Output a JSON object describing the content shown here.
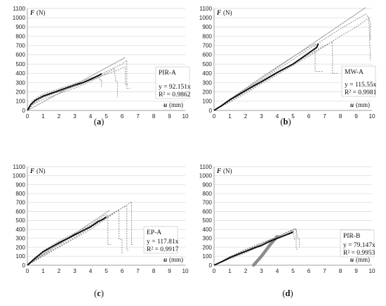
{
  "chart_data": [
    {
      "type": "line",
      "panel": "(a)",
      "label_letter": "a",
      "specimen": "PIR-A",
      "equation": "y = 92.151x",
      "r2": "R² = 0.9862",
      "xlabel_symbol": "u",
      "xlabel_unit": "(mm)",
      "ylabel_symbol": "F",
      "ylabel_unit": "(N)",
      "xlim": [
        0,
        10
      ],
      "ylim": [
        0,
        1100
      ],
      "xticks": [
        0,
        1,
        2,
        3,
        4,
        5,
        6,
        7,
        8,
        9,
        10
      ],
      "yticks": [
        0,
        100,
        200,
        300,
        400,
        500,
        600,
        700,
        800,
        900,
        1000,
        1100
      ],
      "grid": true,
      "slope": 92.151,
      "fit_x_end": 6.2,
      "mean_curve": [
        [
          0,
          0
        ],
        [
          0.2,
          60
        ],
        [
          0.5,
          110
        ],
        [
          1,
          155
        ],
        [
          1.5,
          185
        ],
        [
          2,
          215
        ],
        [
          2.5,
          245
        ],
        [
          3,
          275
        ],
        [
          3.5,
          300
        ],
        [
          4,
          335
        ],
        [
          4.3,
          360
        ],
        [
          4.6,
          385
        ],
        [
          4.7,
          395
        ]
      ],
      "specimen_curves": [
        [
          [
            0,
            0
          ],
          [
            0.3,
            100
          ],
          [
            0.7,
            150
          ],
          [
            1.2,
            190
          ],
          [
            2,
            235
          ],
          [
            3,
            290
          ],
          [
            4,
            350
          ],
          [
            4.5,
            375
          ],
          [
            4.6,
            330
          ],
          [
            4.7,
            330
          ],
          [
            4.7,
            250
          ]
        ],
        [
          [
            0,
            0
          ],
          [
            0.3,
            80
          ],
          [
            0.8,
            135
          ],
          [
            1.5,
            175
          ],
          [
            2.5,
            230
          ],
          [
            3.5,
            290
          ],
          [
            4.5,
            360
          ],
          [
            5.5,
            420
          ],
          [
            6.2,
            470
          ],
          [
            6.2,
            280
          ],
          [
            6.4,
            280
          ]
        ],
        [
          [
            0,
            0
          ],
          [
            0.4,
            70
          ],
          [
            1,
            120
          ],
          [
            2,
            180
          ],
          [
            3,
            240
          ],
          [
            4,
            310
          ],
          [
            5,
            400
          ],
          [
            5.5,
            450
          ],
          [
            5.6,
            310
          ],
          [
            5.7,
            310
          ],
          [
            5.7,
            150
          ]
        ],
        [
          [
            0,
            0
          ],
          [
            0.5,
            90
          ],
          [
            1,
            140
          ],
          [
            2,
            200
          ],
          [
            3,
            260
          ],
          [
            4,
            330
          ],
          [
            5,
            420
          ],
          [
            6,
            500
          ],
          [
            6.3,
            540
          ],
          [
            6.3,
            240
          ],
          [
            6.5,
            240
          ]
        ]
      ]
    },
    {
      "type": "line",
      "panel": "(b)",
      "label_letter": "b",
      "specimen": "MW-A",
      "equation": "y = 115.55x",
      "r2": "R² = 0.9981",
      "xlabel_symbol": "u",
      "xlabel_unit": "(mm)",
      "ylabel_symbol": "F",
      "ylabel_unit": "(N)",
      "xlim": [
        0,
        10
      ],
      "ylim": [
        0,
        1100
      ],
      "xticks": [
        0,
        1,
        2,
        3,
        4,
        5,
        6,
        7,
        8,
        9,
        10
      ],
      "yticks": [
        0,
        100,
        200,
        300,
        400,
        500,
        600,
        700,
        800,
        900,
        1000,
        1100
      ],
      "grid": true,
      "slope": 115.55,
      "fit_x_end": 9.6,
      "mean_curve": [
        [
          0,
          0
        ],
        [
          0.5,
          55
        ],
        [
          1,
          115
        ],
        [
          1.5,
          165
        ],
        [
          2,
          215
        ],
        [
          2.5,
          265
        ],
        [
          3,
          310
        ],
        [
          3.5,
          360
        ],
        [
          4,
          410
        ],
        [
          4.5,
          455
        ],
        [
          5,
          500
        ],
        [
          5.5,
          560
        ],
        [
          6,
          620
        ],
        [
          6.5,
          680
        ],
        [
          6.6,
          720
        ]
      ],
      "specimen_curves": [
        [
          [
            0,
            0
          ],
          [
            1,
            120
          ],
          [
            2,
            240
          ],
          [
            3,
            360
          ],
          [
            4,
            470
          ],
          [
            5,
            580
          ],
          [
            6,
            680
          ],
          [
            6.4,
            720
          ],
          [
            6.4,
            420
          ],
          [
            6.9,
            420
          ]
        ],
        [
          [
            0,
            0
          ],
          [
            1,
            100
          ],
          [
            2,
            200
          ],
          [
            3,
            300
          ],
          [
            4,
            400
          ],
          [
            5,
            500
          ],
          [
            6,
            600
          ],
          [
            7,
            700
          ],
          [
            7.5,
            740
          ],
          [
            7.5,
            400
          ],
          [
            7.8,
            400
          ]
        ],
        [
          [
            0,
            0
          ],
          [
            1,
            110
          ],
          [
            2,
            220
          ],
          [
            3,
            330
          ],
          [
            4,
            440
          ],
          [
            5,
            550
          ],
          [
            6,
            660
          ],
          [
            7,
            770
          ],
          [
            8,
            880
          ],
          [
            9,
            980
          ],
          [
            9.6,
            1040
          ],
          [
            9.8,
            1000
          ],
          [
            9.9,
            540
          ]
        ],
        [
          [
            0,
            0
          ],
          [
            1,
            90
          ],
          [
            2,
            185
          ],
          [
            3,
            285
          ],
          [
            4,
            385
          ],
          [
            5,
            485
          ],
          [
            6,
            585
          ],
          [
            7,
            690
          ],
          [
            8,
            800
          ],
          [
            9,
            900
          ],
          [
            9.5,
            960
          ],
          [
            9.8,
            1000
          ],
          [
            9.9,
            940
          ],
          [
            9.9,
            760
          ]
        ]
      ]
    },
    {
      "type": "line",
      "panel": "(c)",
      "label_letter": "c",
      "specimen": "EP-A",
      "equation": "y = 117.81x",
      "r2": "R² = 0.9917",
      "xlabel_symbol": "u",
      "xlabel_unit": "(mm)",
      "ylabel_symbol": "F",
      "ylabel_unit": "(N)",
      "xlim": [
        0,
        10
      ],
      "ylim": [
        0,
        1100
      ],
      "xticks": [
        0,
        1,
        2,
        3,
        4,
        5,
        6,
        7,
        8,
        9,
        10
      ],
      "yticks": [
        0,
        100,
        200,
        300,
        400,
        500,
        600,
        700,
        800,
        900,
        1000,
        1100
      ],
      "grid": true,
      "slope": 117.81,
      "fit_x_end": 5.2,
      "mean_curve": [
        [
          0,
          0
        ],
        [
          0.5,
          80
        ],
        [
          1,
          150
        ],
        [
          1.5,
          200
        ],
        [
          2,
          250
        ],
        [
          2.5,
          295
        ],
        [
          3,
          340
        ],
        [
          3.5,
          385
        ],
        [
          4,
          430
        ],
        [
          4.5,
          490
        ],
        [
          4.8,
          515
        ],
        [
          5,
          540
        ]
      ],
      "specimen_curves": [
        [
          [
            0,
            0
          ],
          [
            1,
            160
          ],
          [
            2,
            270
          ],
          [
            3,
            360
          ],
          [
            4,
            450
          ],
          [
            4.9,
            560
          ],
          [
            5.1,
            560
          ],
          [
            5.1,
            230
          ],
          [
            5.3,
            230
          ]
        ],
        [
          [
            0,
            0
          ],
          [
            1,
            130
          ],
          [
            2,
            230
          ],
          [
            3,
            330
          ],
          [
            4,
            430
          ],
          [
            5,
            540
          ],
          [
            5.8,
            620
          ],
          [
            5.8,
            290
          ],
          [
            6,
            290
          ],
          [
            6,
            120
          ]
        ],
        [
          [
            0,
            0
          ],
          [
            1,
            110
          ],
          [
            2,
            210
          ],
          [
            3,
            310
          ],
          [
            4,
            420
          ],
          [
            5,
            530
          ],
          [
            6,
            640
          ],
          [
            6.3,
            660
          ],
          [
            6.3,
            170
          ],
          [
            6.4,
            170
          ]
        ],
        [
          [
            0,
            0
          ],
          [
            1,
            100
          ],
          [
            2,
            200
          ],
          [
            3,
            300
          ],
          [
            4,
            400
          ],
          [
            5,
            520
          ],
          [
            6,
            640
          ],
          [
            6.6,
            710
          ],
          [
            6.6,
            230
          ],
          [
            6.7,
            230
          ]
        ]
      ]
    },
    {
      "type": "line",
      "panel": "(d)",
      "label_letter": "d",
      "specimen": "PIR-B",
      "equation": "y = 79.147x",
      "r2": "R² = 0.9953",
      "xlabel_symbol": "u",
      "xlabel_unit": "(mm)",
      "ylabel_symbol": "F",
      "ylabel_unit": "(N)",
      "xlim": [
        0,
        10
      ],
      "ylim": [
        0,
        1100
      ],
      "xticks": [
        0,
        1,
        2,
        3,
        4,
        5,
        6,
        7,
        8,
        9,
        10
      ],
      "yticks": [
        0,
        100,
        200,
        300,
        400,
        500,
        600,
        700,
        800,
        900,
        1000,
        1100
      ],
      "grid": true,
      "slope": 79.147,
      "fit_x_end": 5.1,
      "mean_curve": [
        [
          0,
          0
        ],
        [
          0.5,
          40
        ],
        [
          1,
          85
        ],
        [
          1.5,
          120
        ],
        [
          2,
          155
        ],
        [
          2.5,
          190
        ],
        [
          3,
          220
        ],
        [
          3.5,
          265
        ],
        [
          4,
          300
        ],
        [
          4.5,
          335
        ],
        [
          4.8,
          355
        ],
        [
          5,
          370
        ]
      ],
      "specimen_curves": [
        [
          [
            0,
            0
          ],
          [
            1,
            90
          ],
          [
            2,
            170
          ],
          [
            3,
            240
          ],
          [
            4,
            310
          ],
          [
            4.8,
            380
          ],
          [
            5,
            380
          ],
          [
            5.1,
            290
          ],
          [
            5.2,
            290
          ]
        ],
        [
          [
            0,
            0
          ],
          [
            1,
            70
          ],
          [
            2,
            140
          ],
          [
            3,
            220
          ],
          [
            4,
            300
          ],
          [
            5,
            380
          ],
          [
            5.2,
            400
          ],
          [
            5.3,
            300
          ],
          [
            5.4,
            300
          ],
          [
            5.4,
            200
          ]
        ],
        [
          [
            0,
            0
          ],
          [
            1,
            95
          ],
          [
            2,
            180
          ],
          [
            3,
            250
          ],
          [
            4,
            320
          ],
          [
            5,
            400
          ],
          [
            5.2,
            410
          ],
          [
            5.2,
            180
          ],
          [
            5.3,
            180
          ]
        ]
      ],
      "grey_band": [
        [
          2.5,
          0
        ],
        [
          2.7,
          40
        ],
        [
          3,
          100
        ],
        [
          3.3,
          170
        ],
        [
          3.6,
          240
        ],
        [
          3.9,
          300
        ],
        [
          4,
          320
        ]
      ]
    }
  ]
}
